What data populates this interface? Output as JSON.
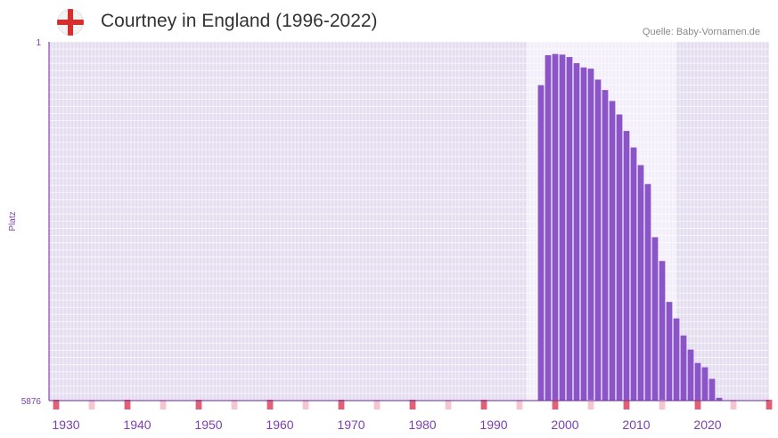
{
  "header": {
    "title": "Courtney in England (1996-2022)",
    "source": "Quelle: Baby-Vornamen.de",
    "flag_icon": "england-flag-icon"
  },
  "colors": {
    "bar": "#8b55c8",
    "plot_bg": "#e4ddef",
    "plot_bg_highlight": "#f2eefa",
    "marker_dark": "#e06078",
    "marker_light": "#f3c6d0",
    "axis": "#6a2a9c"
  },
  "chart_data": {
    "type": "bar",
    "title": "Courtney in England (1996-2022)",
    "xlabel": "",
    "ylabel": "Platz",
    "y_inverted": true,
    "ylim": [
      1,
      5876
    ],
    "ytick_labels": [
      "1",
      "5876"
    ],
    "xlim": [
      1927,
      2028
    ],
    "xtick_labels": [
      "1930",
      "1940",
      "1950",
      "1960",
      "1970",
      "1980",
      "1990",
      "2000",
      "2010",
      "2020"
    ],
    "highlight_range": [
      1994,
      2015
    ],
    "categories": [
      1996,
      1997,
      1998,
      1999,
      2000,
      2001,
      2002,
      2003,
      2004,
      2005,
      2006,
      2007,
      2008,
      2009,
      2010,
      2011,
      2012,
      2013,
      2014,
      2015,
      2016,
      2017,
      2018,
      2019,
      2020,
      2021,
      2022
    ],
    "values": [
      710,
      220,
      200,
      210,
      250,
      350,
      420,
      440,
      620,
      790,
      970,
      1190,
      1460,
      1730,
      2020,
      2330,
      3200,
      3590,
      4260,
      4530,
      4810,
      5040,
      5260,
      5330,
      5520,
      5830,
      5960
    ]
  }
}
